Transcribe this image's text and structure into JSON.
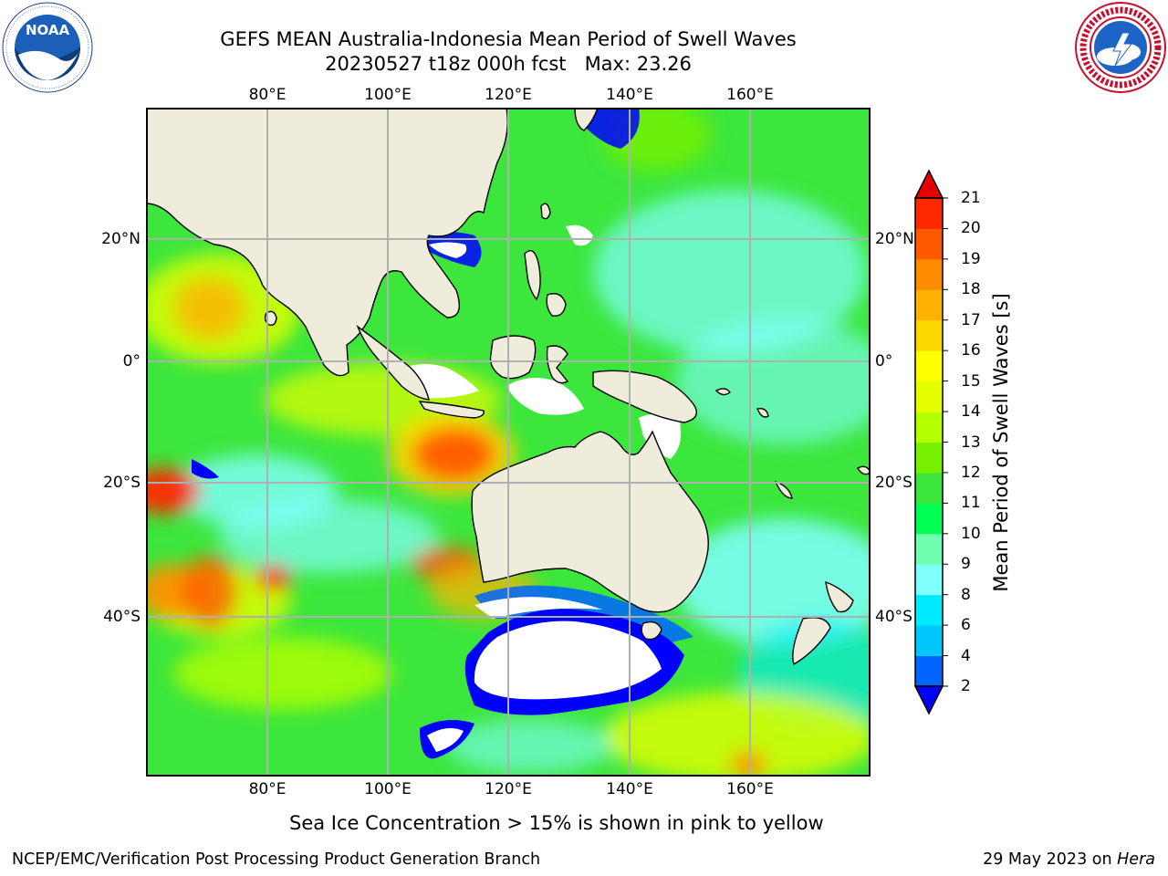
{
  "title": {
    "line1": "GEFS MEAN Australia-Indonesia Mean Period of Swell Waves",
    "line2": "20230527 t18z 000h fcst   Max: 23.26"
  },
  "logos": {
    "left": {
      "icon": "noaa-logo",
      "text": "NOAA",
      "ring_text": "NATIONAL OCEANIC AND ATMOSPHERIC ADMINISTRATION · U.S. DEPARTMENT OF COMMERCE"
    },
    "right": {
      "icon": "nws-logo",
      "ring_text": "NATIONAL WEATHER SERVICE"
    }
  },
  "map": {
    "lon_labels": [
      "80°E",
      "100°E",
      "120°E",
      "140°E",
      "160°E"
    ],
    "lat_labels": [
      "20°N",
      "0°",
      "20°S",
      "40°S"
    ],
    "colors": {
      "land": "#efecdc",
      "sea_ice_or_nodata": "#ffffff",
      "grid": "#b0b0b0",
      "coast": "#000000"
    }
  },
  "colorbar": {
    "label": "Mean Period of Swell Waves [s]",
    "ticks": [
      "2",
      "4",
      "6",
      "8",
      "9",
      "10",
      "11",
      "12",
      "13",
      "14",
      "15",
      "16",
      "17",
      "18",
      "19",
      "20",
      "21"
    ],
    "colors": [
      "#0000ff",
      "#0064ff",
      "#00c8ff",
      "#00ebff",
      "#80ffff",
      "#70ffb0",
      "#00ff55",
      "#3ce63c",
      "#77f000",
      "#b4ff00",
      "#e6ff00",
      "#ffff00",
      "#ffd700",
      "#ffb300",
      "#ff8c00",
      "#ff5a00",
      "#ff2800",
      "#e60000"
    ],
    "extend": "both"
  },
  "note": "Sea Ice Concentration > 15% is shown in pink to yellow",
  "footer": {
    "left": "NCEP/EMC/Verification Post Processing Product Generation Branch",
    "right_date": "29 May 2023 on ",
    "right_host": "Hera"
  }
}
